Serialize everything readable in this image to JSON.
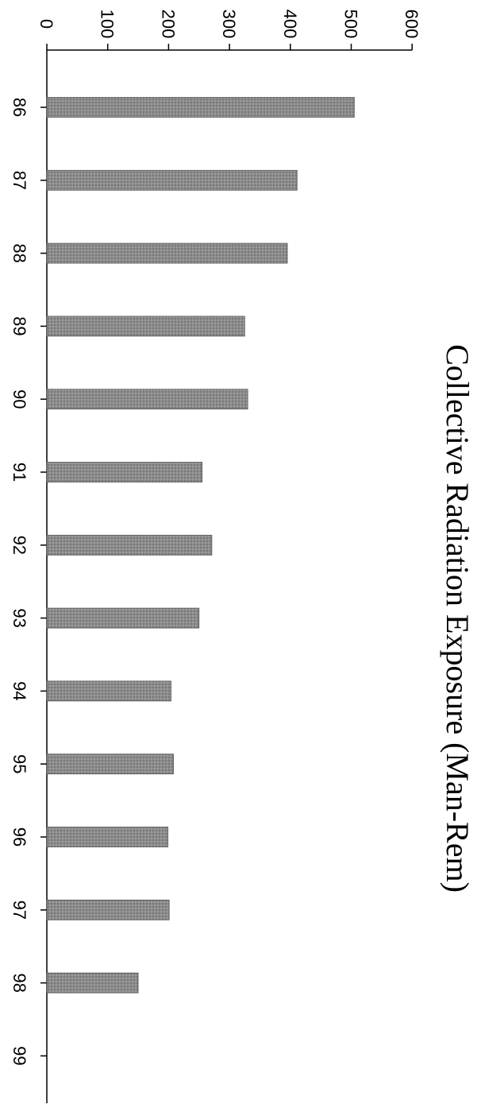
{
  "chart_data": {
    "type": "bar",
    "orientation": "rotated-90-clockwise",
    "title": "Collective Radiation Exposure (Man-Rem)",
    "xlabel": "",
    "ylabel": "",
    "categories": [
      "86",
      "87",
      "88",
      "89",
      "90",
      "91",
      "92",
      "93",
      "94",
      "95",
      "96",
      "97",
      "98",
      "99"
    ],
    "values": [
      505,
      411,
      395,
      325,
      330,
      255,
      271,
      250,
      204,
      208,
      199,
      201,
      150,
      null
    ],
    "ylim": [
      0,
      600
    ],
    "yticks": [
      0,
      100,
      200,
      300,
      400,
      500,
      600
    ],
    "grid": false,
    "legend": "none",
    "bar_color": "#8c8c8c"
  }
}
